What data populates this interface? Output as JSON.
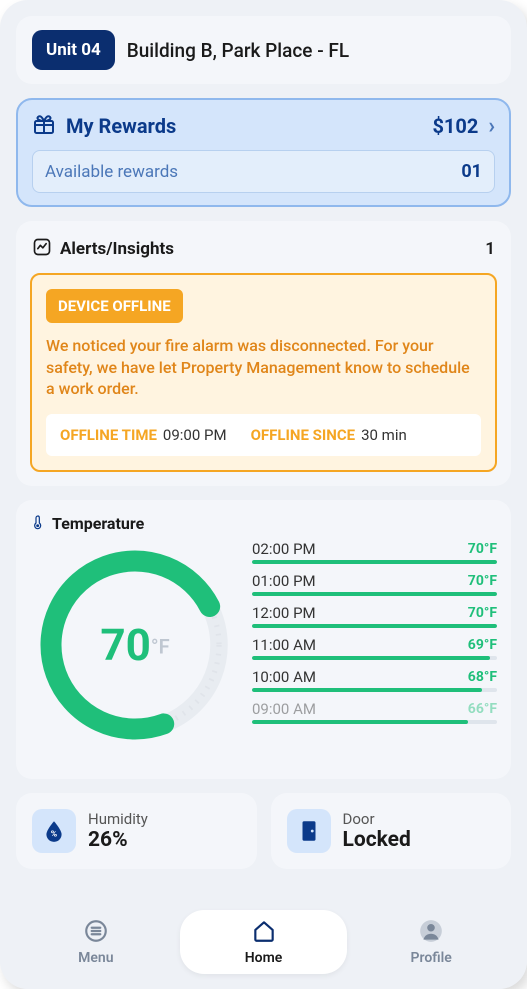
{
  "header": {
    "unit_badge": "Unit 04",
    "location": "Building B, Park Place - FL"
  },
  "rewards": {
    "title": "My Rewards",
    "amount": "$102",
    "sub_label": "Available rewards",
    "sub_count": "01",
    "bg_color": "#d4e5fb",
    "border_color": "#8fb8ed",
    "text_color": "#0b3a8a"
  },
  "alerts": {
    "title": "Alerts/Insights",
    "count": "1",
    "badge": "DEVICE OFFLINE",
    "message": "We noticed your fire alarm was disconnected. For your safety, we have let Property Management know to schedule a work order.",
    "offline_time_label": "OFFLINE TIME",
    "offline_time_value": "09:00 PM",
    "offline_since_label": "OFFLINE SINCE",
    "offline_since_value": "30 min",
    "accent_color": "#f5a623",
    "bg_color": "#fff4e0"
  },
  "temperature": {
    "title": "Temperature",
    "current_value": "70",
    "current_unit": "°F",
    "gauge_color": "#1fbf7a",
    "gauge_track_color": "#e2e6ec",
    "gauge_fill_pct": 73,
    "history": [
      {
        "time": "02:00 PM",
        "value": "70°F",
        "bar_pct": 100
      },
      {
        "time": "01:00 PM",
        "value": "70°F",
        "bar_pct": 100
      },
      {
        "time": "12:00 PM",
        "value": "70°F",
        "bar_pct": 100
      },
      {
        "time": "11:00 AM",
        "value": "69°F",
        "bar_pct": 97
      },
      {
        "time": "10:00 AM",
        "value": "68°F",
        "bar_pct": 94
      },
      {
        "time": "09:00 AM",
        "value": "66°F",
        "bar_pct": 88
      }
    ]
  },
  "humidity": {
    "label": "Humidity",
    "value": "26%"
  },
  "door": {
    "label": "Door",
    "value": "Locked"
  },
  "nav": {
    "menu": "Menu",
    "home": "Home",
    "profile": "Profile"
  }
}
